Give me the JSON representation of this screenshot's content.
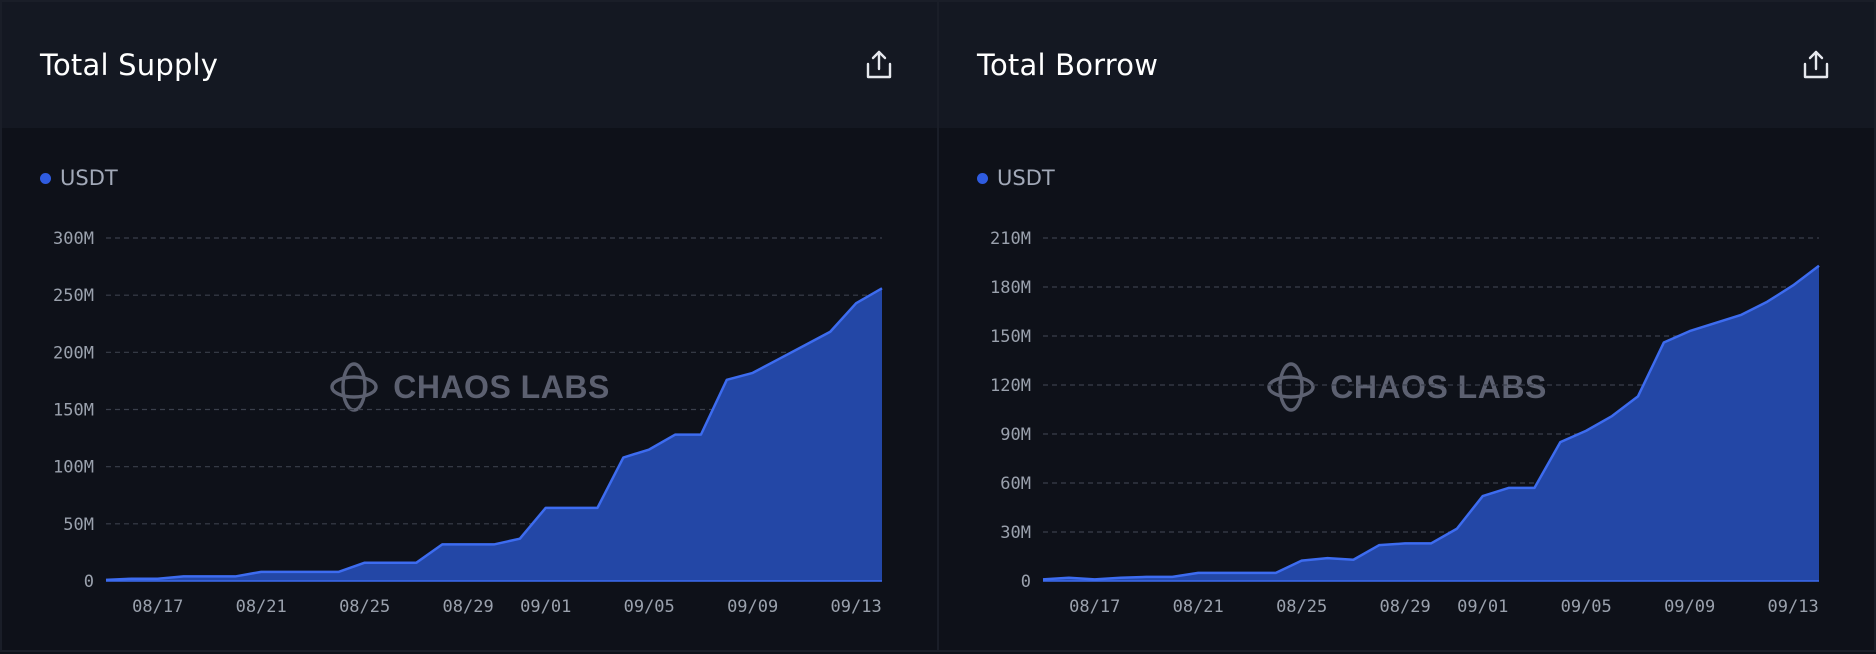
{
  "colors": {
    "accent": "#2f5ce0",
    "area_fill": "#2347a6",
    "line": "#3d6cf0",
    "grid": "#3a3f4b"
  },
  "watermark": "CHAOS LABS",
  "icons": {
    "export": "share-export-icon",
    "watermark_logo": "chaos-labs-logo-icon"
  },
  "panels": [
    {
      "title": "Total Supply",
      "legend": "USDT",
      "chart_data": {
        "type": "area",
        "title": "Total Supply",
        "series": [
          {
            "name": "USDT",
            "values": [
              1,
              2,
              2,
              4,
              4,
              4,
              8,
              8,
              8,
              8,
              16,
              16,
              16,
              32,
              32,
              32,
              37,
              64,
              64,
              64,
              108,
              115,
              128,
              128,
              176,
              182,
              194,
              206,
              218,
              243,
              256
            ]
          }
        ],
        "x": [
          "08/15",
          "08/16",
          "08/17",
          "08/18",
          "08/19",
          "08/20",
          "08/21",
          "08/22",
          "08/23",
          "08/24",
          "08/25",
          "08/26",
          "08/27",
          "08/28",
          "08/29",
          "08/30",
          "08/31",
          "09/01",
          "09/02",
          "09/03",
          "09/04",
          "09/05",
          "09/06",
          "09/07",
          "09/08",
          "09/09",
          "09/10",
          "09/11",
          "09/12",
          "09/13",
          "09/14"
        ],
        "x_tick_labels": [
          "08/17",
          "08/21",
          "08/25",
          "08/29",
          "09/01",
          "09/05",
          "09/09",
          "09/13"
        ],
        "y_tick_values": [
          0,
          50,
          100,
          150,
          200,
          250,
          300
        ],
        "y_tick_labels": [
          "0",
          "50M",
          "100M",
          "150M",
          "200M",
          "250M",
          "300M"
        ],
        "ylim": [
          0,
          300
        ],
        "y_unit": "M",
        "grid": true,
        "legend_position": "top-left"
      }
    },
    {
      "title": "Total Borrow",
      "legend": "USDT",
      "chart_data": {
        "type": "area",
        "title": "Total Borrow",
        "series": [
          {
            "name": "USDT",
            "values": [
              1,
              2,
              1,
              2,
              2.5,
              2.5,
              5,
              5,
              5,
              5,
              12.5,
              14,
              13,
              22,
              23,
              23,
              32,
              52,
              57,
              57,
              85,
              92,
              101,
              113,
              146,
              153,
              158,
              163,
              171,
              181,
              193
            ]
          }
        ],
        "x": [
          "08/15",
          "08/16",
          "08/17",
          "08/18",
          "08/19",
          "08/20",
          "08/21",
          "08/22",
          "08/23",
          "08/24",
          "08/25",
          "08/26",
          "08/27",
          "08/28",
          "08/29",
          "08/30",
          "08/31",
          "09/01",
          "09/02",
          "09/03",
          "09/04",
          "09/05",
          "09/06",
          "09/07",
          "09/08",
          "09/09",
          "09/10",
          "09/11",
          "09/12",
          "09/13",
          "09/14"
        ],
        "x_tick_labels": [
          "08/17",
          "08/21",
          "08/25",
          "08/29",
          "09/01",
          "09/05",
          "09/09",
          "09/13"
        ],
        "y_tick_values": [
          0,
          30,
          60,
          90,
          120,
          150,
          180,
          210
        ],
        "y_tick_labels": [
          "0",
          "30M",
          "60M",
          "90M",
          "120M",
          "150M",
          "180M",
          "210M"
        ],
        "ylim": [
          0,
          210
        ],
        "y_unit": "M",
        "grid": true,
        "legend_position": "top-left"
      }
    }
  ]
}
